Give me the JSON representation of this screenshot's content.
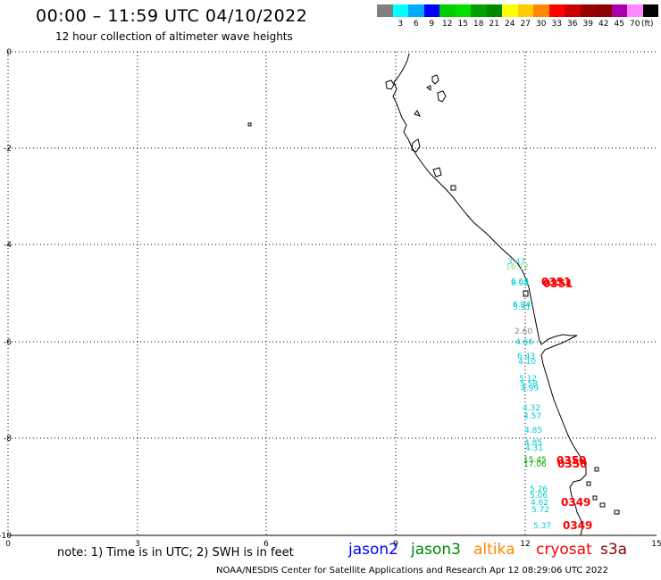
{
  "header": {
    "title": "00:00 – 11:59 UTC 04/10/2022",
    "subtitle": "12 hour collection of altimeter wave heights"
  },
  "color_scale": {
    "unit": "(ft)",
    "items": [
      {
        "color": "#808080",
        "label": ""
      },
      {
        "color": "#00ffff",
        "label": "3"
      },
      {
        "color": "#00aaff",
        "label": "6"
      },
      {
        "color": "#0000ff",
        "label": "9"
      },
      {
        "color": "#00cc00",
        "label": "12"
      },
      {
        "color": "#00e000",
        "label": "15"
      },
      {
        "color": "#00a000",
        "label": "18"
      },
      {
        "color": "#008800",
        "label": "21"
      },
      {
        "color": "#ffff00",
        "label": "24"
      },
      {
        "color": "#ffcc00",
        "label": "27"
      },
      {
        "color": "#ff8800",
        "label": "30"
      },
      {
        "color": "#ff0000",
        "label": "33"
      },
      {
        "color": "#cc0000",
        "label": "36"
      },
      {
        "color": "#990000",
        "label": "39"
      },
      {
        "color": "#8b0000",
        "label": "42"
      },
      {
        "color": "#aa00aa",
        "label": "45"
      },
      {
        "color": "#ff88ff",
        "label": "70"
      },
      {
        "color": "#000000",
        "label": ""
      }
    ]
  },
  "map": {
    "x_ticks": [
      "0",
      "3",
      "6",
      "9",
      "12",
      "15"
    ],
    "y_ticks": [
      "0",
      "-2",
      "-4",
      "-6",
      "-8",
      "-10"
    ],
    "observations": [
      {
        "text": "3.47",
        "color": "#33cccc"
      },
      {
        "text": "16.12",
        "color": "#88dd88"
      },
      {
        "text": "6.63",
        "color": "#00cccc"
      },
      {
        "text": "8.05",
        "color": "#00cccc"
      },
      {
        "text": "0351",
        "color": "#ff0000"
      },
      {
        "text": "0351",
        "color": "#ff0000"
      },
      {
        "text": "6.94",
        "color": "#00cccc"
      },
      {
        "text": "5.91",
        "color": "#00cccc"
      },
      {
        "text": "2.60",
        "color": "#888888"
      },
      {
        "text": "4.66",
        "color": "#00cccc"
      },
      {
        "text": "6.43",
        "color": "#00cccc"
      },
      {
        "text": "4.10",
        "color": "#00cccc"
      },
      {
        "text": "5.12",
        "color": "#00cccc"
      },
      {
        "text": "5.58",
        "color": "#00cccc"
      },
      {
        "text": "4.99",
        "color": "#00cccc"
      },
      {
        "text": "4.32",
        "color": "#00cccc"
      },
      {
        "text": "4.57",
        "color": "#00cccc"
      },
      {
        "text": "4.85",
        "color": "#00cccc"
      },
      {
        "text": "4.85",
        "color": "#00cccc"
      },
      {
        "text": "4.31",
        "color": "#00cccc"
      },
      {
        "text": "15.45",
        "color": "#00aa00"
      },
      {
        "text": "17.06",
        "color": "#00aa00"
      },
      {
        "text": "0350",
        "color": "#ff0000"
      },
      {
        "text": "0350",
        "color": "#ff0000"
      },
      {
        "text": "5.26",
        "color": "#00cccc"
      },
      {
        "text": "5.06",
        "color": "#00cccc"
      },
      {
        "text": "4.62",
        "color": "#00cccc"
      },
      {
        "text": "5.72",
        "color": "#00cccc"
      },
      {
        "text": "0349",
        "color": "#ff0000"
      },
      {
        "text": "5.37",
        "color": "#00cccc"
      },
      {
        "text": "0349",
        "color": "#ff0000"
      }
    ]
  },
  "footer": {
    "note": "note:  1) Time is in UTC;  2) SWH is in feet",
    "legend": [
      {
        "text": "jason2",
        "color": "#0000ff"
      },
      {
        "text": "jason3",
        "color": "#008800"
      },
      {
        "text": "altika",
        "color": "#ff8800"
      },
      {
        "text": "cryosat",
        "color": "#ff0000"
      },
      {
        "text": "s3a",
        "color": "#8b0000"
      }
    ],
    "credit": "NOAA/NESDIS Center for Satellite Applications and Research    Apr 12 08:29:06 UTC 2022"
  }
}
